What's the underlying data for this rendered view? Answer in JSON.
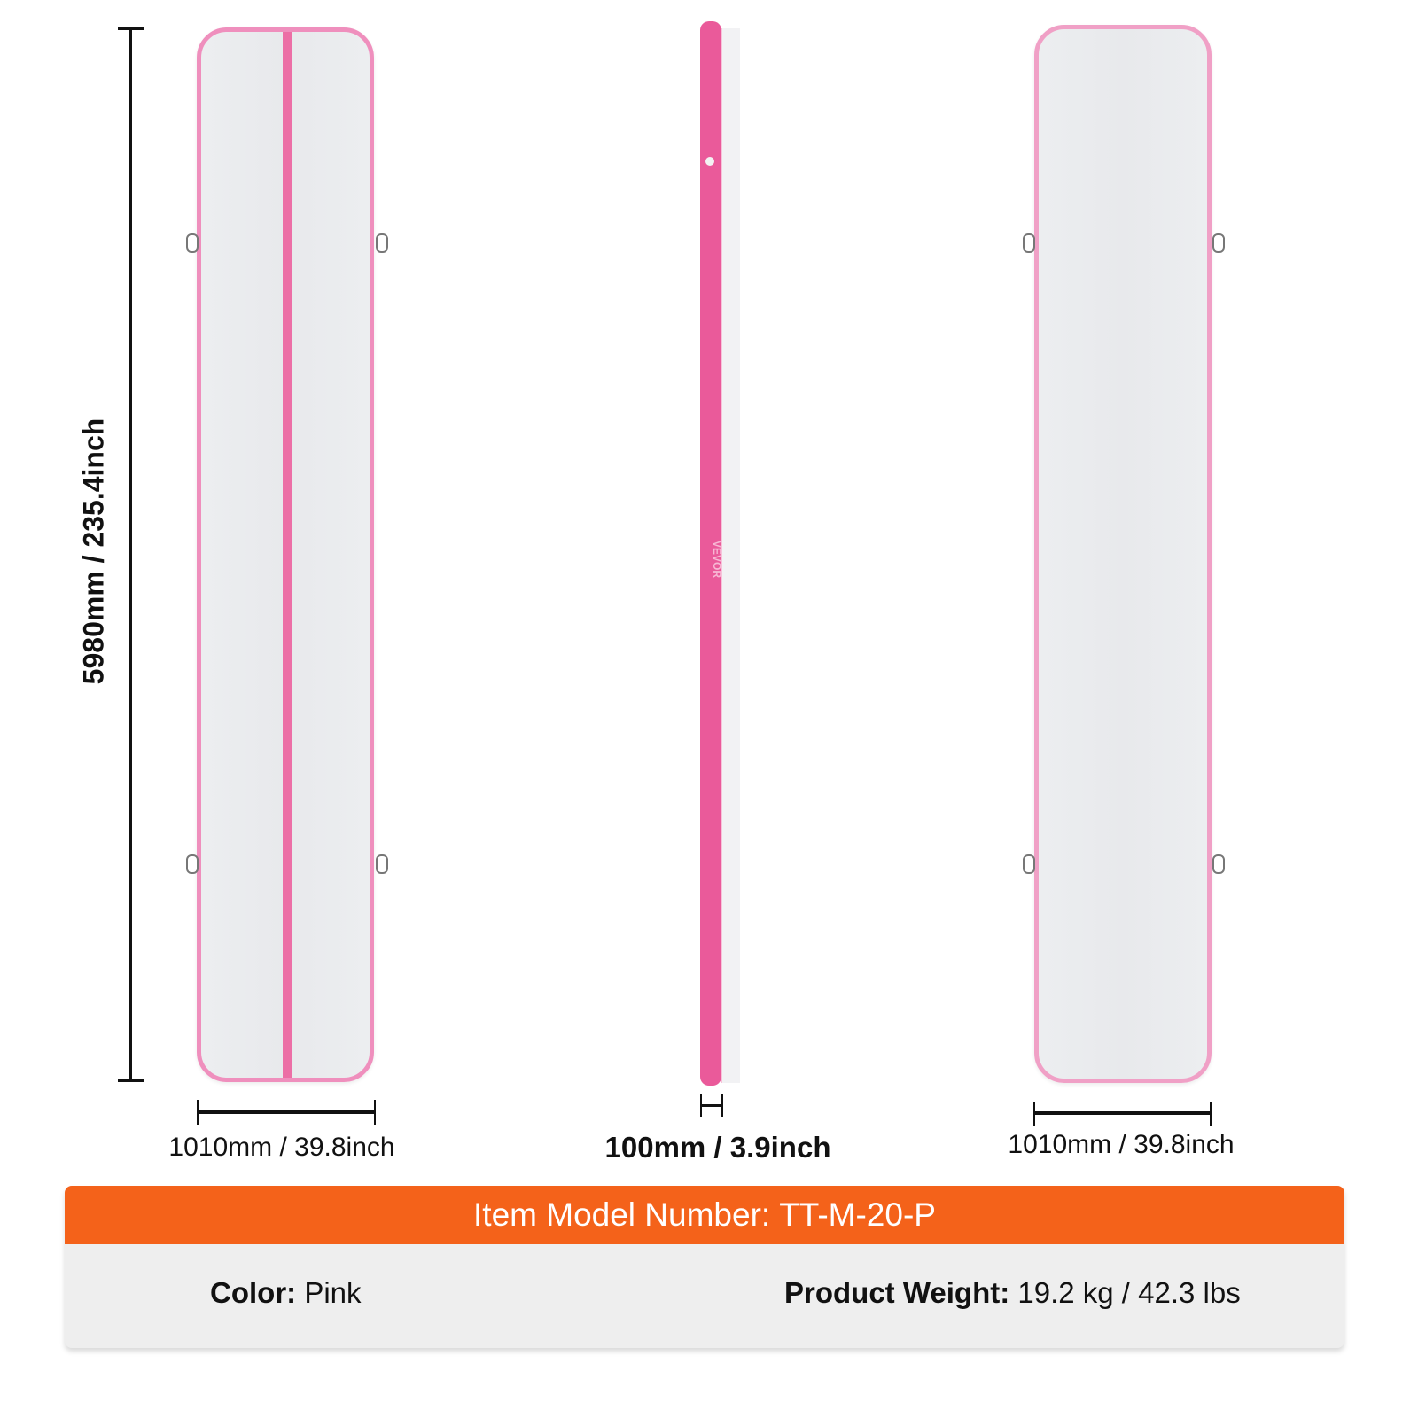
{
  "dimensions": {
    "length": "5980mm / 235.4inch",
    "width_left": "1010mm / 39.8inch",
    "thickness": "100mm / 3.9inch",
    "width_right": "1010mm / 39.8inch"
  },
  "side_view_brand": "VEVOR",
  "model": {
    "label": "Item Model Number:",
    "value": "TT-M-20-P"
  },
  "specs": {
    "color_label": "Color:",
    "color_value": "Pink",
    "weight_label": "Product Weight:",
    "weight_value": "19.2 kg / 42.3 lbs"
  },
  "colors": {
    "accent": "#f4621a",
    "mat_pink": "#ec6fa6",
    "panel": "#eeeeee"
  }
}
